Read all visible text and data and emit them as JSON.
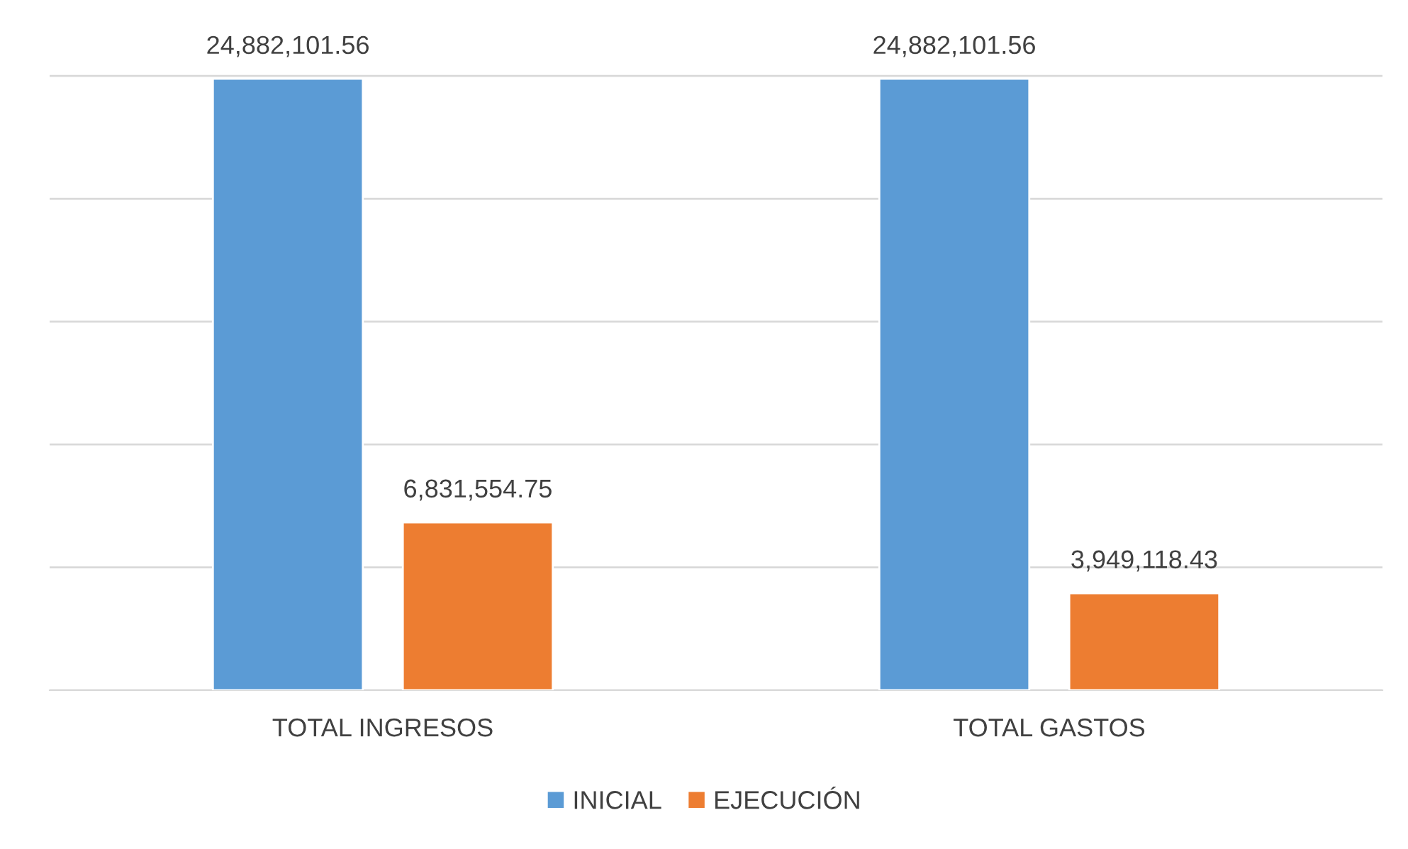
{
  "chart_data": {
    "type": "bar",
    "categories": [
      "TOTAL INGRESOS",
      "TOTAL GASTOS"
    ],
    "series": [
      {
        "name": "INICIAL",
        "color": "#5b9bd5",
        "values": [
          24882101.56,
          24882101.56
        ],
        "value_labels": [
          "24,882,101.56",
          "24,882,101.56"
        ]
      },
      {
        "name": "EJECUCIÓN",
        "color": "#ed7d31",
        "values": [
          6831554.75,
          3949118.43
        ],
        "value_labels": [
          "6,831,554.75",
          "3,949,118.43"
        ]
      }
    ],
    "tick_labels": "x",
    "grid": "y",
    "legend": "bottom"
  }
}
